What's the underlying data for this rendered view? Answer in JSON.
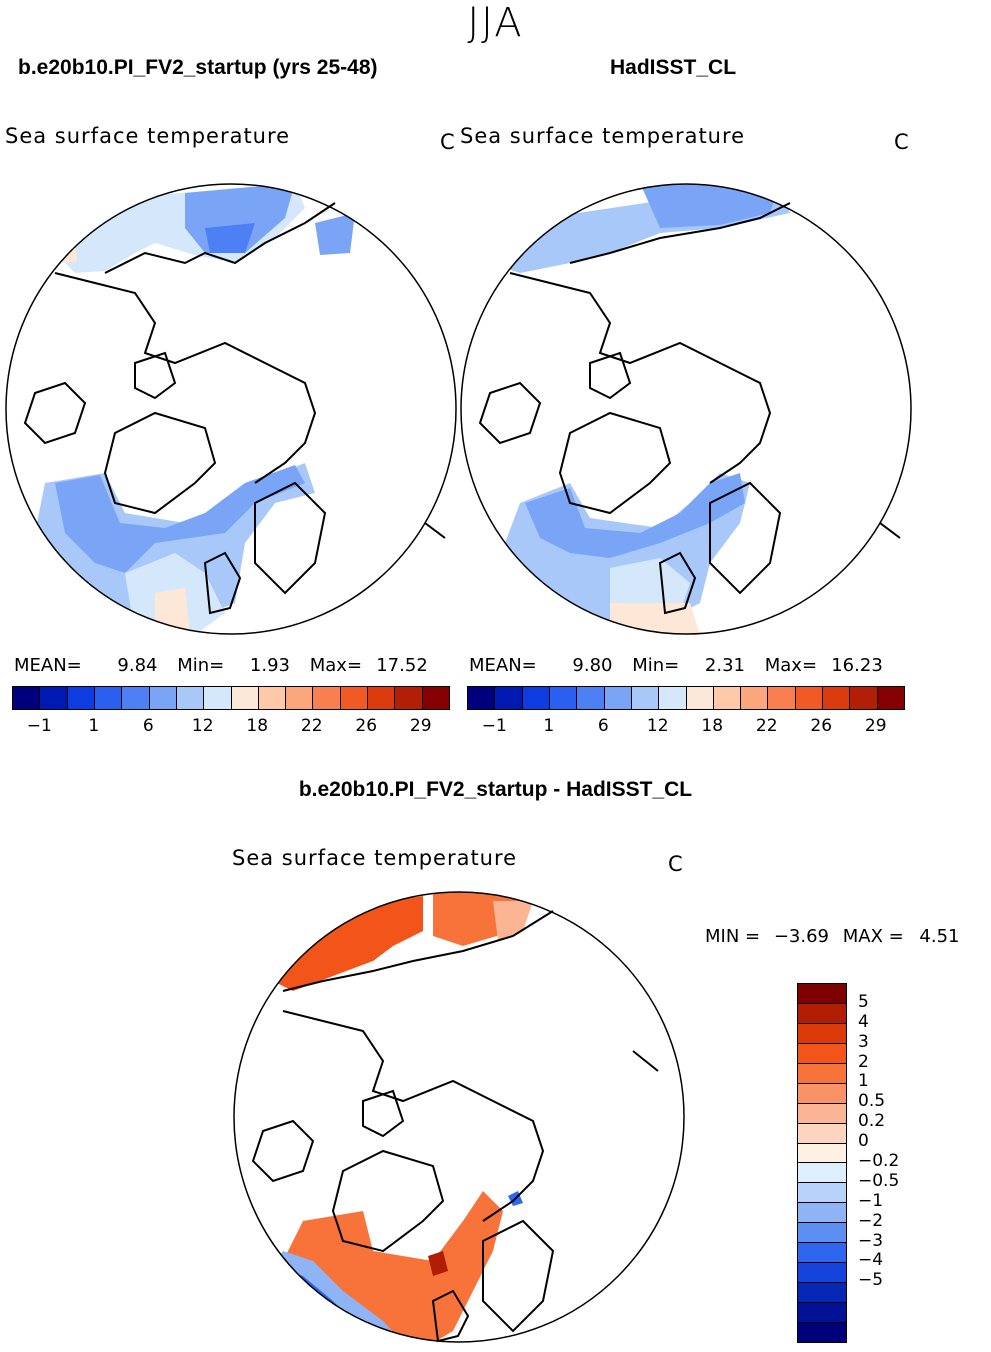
{
  "season": "JJA",
  "panels": [
    {
      "case": "b.e20b10.PI_FV2_startup (yrs 25-48)",
      "variable": "Sea surface temperature",
      "units": "C",
      "mean_label": "MEAN=",
      "mean": "9.84",
      "min_label": "Min=",
      "min": "1.93",
      "max_label": "Max=",
      "max": "17.52"
    },
    {
      "case": "HadISST_CL",
      "variable": "Sea surface temperature",
      "units": "C",
      "mean_label": "MEAN=",
      "mean": "9.80",
      "min_label": "Min=",
      "min": "2.31",
      "max_label": "Max=",
      "max": "16.23"
    }
  ],
  "colorbar_top": {
    "colors": [
      "#00007f",
      "#0019b2",
      "#0d3ce0",
      "#2a5ff0",
      "#4d80f5",
      "#7aa5f7",
      "#a8c8fa",
      "#d5e8fb",
      "#fde8d8",
      "#fdc9a8",
      "#fba67c",
      "#f97f50",
      "#f25a25",
      "#dc3b0e",
      "#b31e06",
      "#850000"
    ],
    "tick_labels": [
      "−1",
      "1",
      "6",
      "12",
      "18",
      "22",
      "26",
      "29"
    ]
  },
  "diff": {
    "title": "b.e20b10.PI_FV2_startup - HadISST_CL",
    "variable": "Sea surface temperature",
    "units": "C",
    "min_label": "MIN =",
    "min": "−3.69",
    "max_label": "MAX =",
    "max": "4.51"
  },
  "colorbar_diff": {
    "colors": [
      "#7f0000",
      "#b01d02",
      "#dc3a08",
      "#f2541a",
      "#f7733a",
      "#f99366",
      "#fbb594",
      "#fdd5be",
      "#fdf1e4",
      "#dfeefc",
      "#b8d3fa",
      "#8fb4f6",
      "#5c8ff2",
      "#2f66ee",
      "#1444dc",
      "#0528b4",
      "#001398",
      "#00007a"
    ],
    "tick_labels": [
      "5",
      "4",
      "3",
      "2",
      "1",
      "0.5",
      "0.2",
      "0",
      "−0.2",
      "−0.5",
      "−1",
      "−2",
      "−3",
      "−4",
      "−5"
    ]
  },
  "colors": {
    "land_outline": "#000000",
    "cold_mid": "#a8c8fa",
    "cold": "#7aa5f7",
    "cold_strong": "#4d80f5",
    "pale_blue": "#d5e8fb",
    "pale_orange": "#fde8d8",
    "diff_warm": "#f7733a",
    "diff_warm2": "#f2541a",
    "diff_cool": "#2f66ee"
  }
}
